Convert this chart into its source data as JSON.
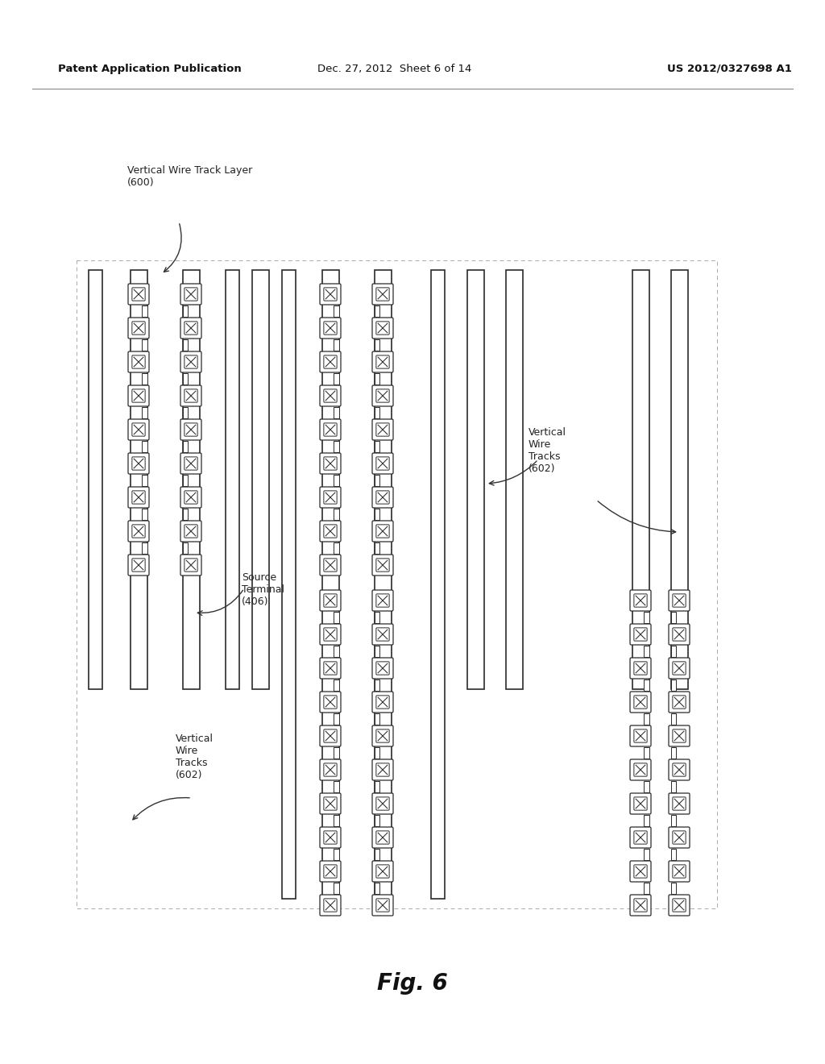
{
  "header_left": "Patent Application Publication",
  "header_center": "Dec. 27, 2012  Sheet 6 of 14",
  "header_right": "US 2012/0327698 A1",
  "bg_color": "#ffffff",
  "line_color": "#2a2a2a",
  "fig_label": "Fig. 6",
  "label_vwt_layer": "Vertical Wire Track Layer\n(600)",
  "label_source": "Source\nTerminal\n(406)",
  "label_vwt_bl": "Vertical\nWire\nTracks\n(602)",
  "label_vwt_r": "Vertical\nWire\nTracks\n(602)"
}
